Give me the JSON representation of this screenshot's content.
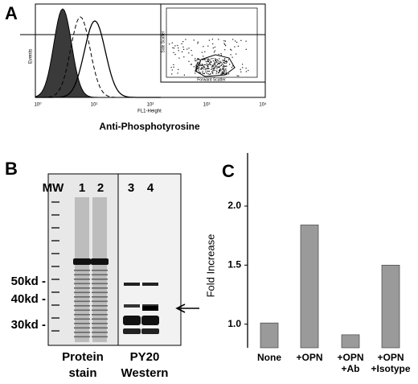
{
  "panels": {
    "a": {
      "label": "A",
      "x_label": "Anti-Phosphotyrosine",
      "y_label": "Events",
      "x_axis_name": "FL1-Height",
      "x_ticks": [
        "10⁰",
        "10¹",
        "10²",
        "10³",
        "10⁴"
      ],
      "inset": {
        "x_label": "Forward Scatter",
        "y_label": "Side Scatter"
      }
    },
    "b": {
      "label": "B",
      "lanes": [
        "MW",
        "1",
        "2",
        "3",
        "4"
      ],
      "markers": [
        "50kd -",
        "40kd -",
        "30kd -"
      ],
      "group_labels": [
        [
          "Protein",
          "stain"
        ],
        [
          "PY20",
          "Western"
        ]
      ]
    },
    "c": {
      "label": "C",
      "chart_data": {
        "type": "bar",
        "y_label": "Fold Increase",
        "categories": [
          "None",
          "+OPN",
          "+OPN +Ab",
          "+OPN +Isotype"
        ],
        "values": [
          1.01,
          1.84,
          0.91,
          1.5
        ],
        "color": "#9a9a9a",
        "ylim": [
          0.8,
          2.45
        ],
        "yticks": [
          {
            "value": 1,
            "label": "1.0"
          },
          {
            "value": 1.5,
            "label": "1.5"
          },
          {
            "value": 2,
            "label": "2.0"
          }
        ]
      }
    }
  }
}
